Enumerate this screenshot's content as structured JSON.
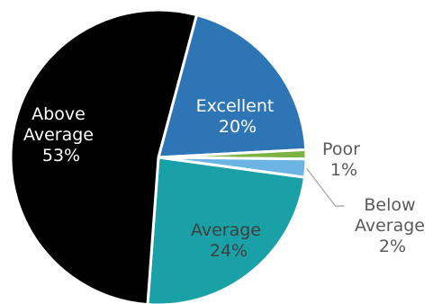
{
  "chart_data": {
    "type": "pie",
    "slices": [
      {
        "label": "Excellent",
        "value": 20,
        "value_label": "20%",
        "color": "#2e75b6",
        "label_color": "#ffffff"
      },
      {
        "label": "Poor",
        "value": 1,
        "value_label": "1%",
        "color": "#7cb342",
        "label_color": "#595959"
      },
      {
        "label": "Below Average",
        "value": 2,
        "value_label": "2%",
        "color": "#6cb4e4",
        "label_color": "#595959"
      },
      {
        "label": "Average",
        "value": 24,
        "value_label": "24%",
        "color": "#1aa0a7",
        "label_color": "#3f3f3f"
      },
      {
        "label": "Above Average",
        "value": 53,
        "value_label": "53%",
        "color": "#000000",
        "label_color": "#ffffff"
      }
    ],
    "start_angle_deg": 15,
    "direction": "clockwise",
    "legend": "none",
    "data_labels": "category and percentage"
  }
}
